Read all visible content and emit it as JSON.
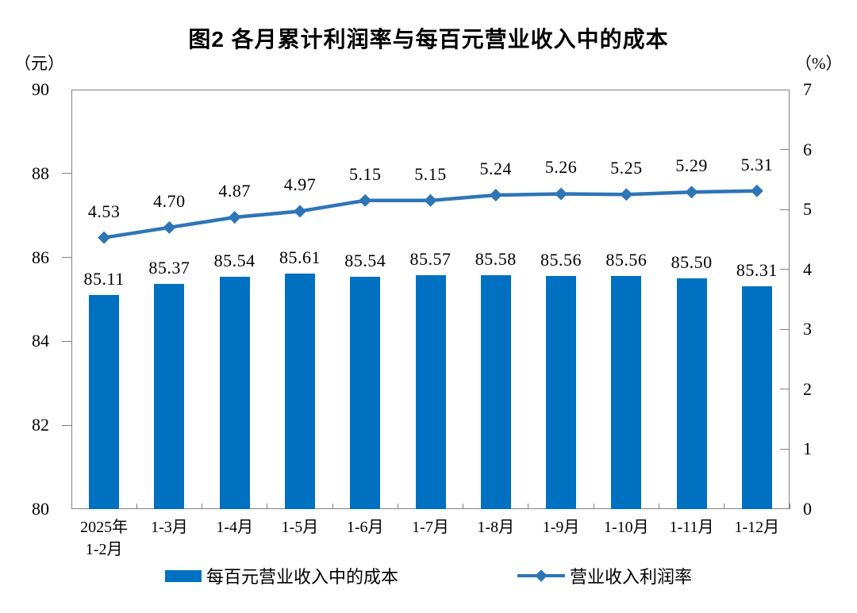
{
  "chart_data": {
    "type": "combo",
    "title": "图2 各月累计利润率与每百元营业收入中的成本",
    "categories": [
      "2025年\n1-2月",
      "1-3月",
      "1-4月",
      "1-5月",
      "1-6月",
      "1-7月",
      "1-8月",
      "1-9月",
      "1-10月",
      "1-11月",
      "1-12月"
    ],
    "series": [
      {
        "name": "每百元营业收入中的成本",
        "type": "bar",
        "axis": "left",
        "color": "#0070C0",
        "values": [
          85.11,
          85.37,
          85.54,
          85.61,
          85.54,
          85.57,
          85.58,
          85.56,
          85.56,
          85.5,
          85.31
        ]
      },
      {
        "name": "营业收入利润率",
        "type": "line",
        "axis": "right",
        "color": "#2E75B6",
        "marker": "diamond",
        "values": [
          4.53,
          4.7,
          4.87,
          4.97,
          5.15,
          5.15,
          5.24,
          5.26,
          5.25,
          5.29,
          5.31
        ]
      }
    ],
    "left_axis": {
      "unit": "（元）",
      "min": 80,
      "max": 90,
      "ticks": [
        90,
        88,
        86,
        84,
        82,
        80
      ]
    },
    "right_axis": {
      "unit": "（%）",
      "min": 0,
      "max": 7,
      "ticks": [
        7,
        6,
        5,
        4,
        3,
        2,
        1,
        0
      ]
    },
    "grid": false,
    "legend_position": "bottom",
    "axis_color": "#808080",
    "text_color": "#000000",
    "background_color": "#FFFFFF"
  }
}
